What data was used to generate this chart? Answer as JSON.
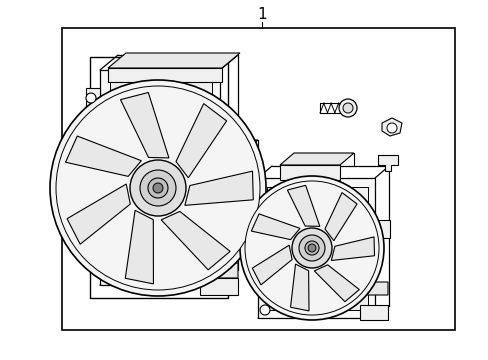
{
  "title": "1",
  "bg": "#ffffff",
  "lc": "#000000",
  "lw": 1.0,
  "fig_w": 4.89,
  "fig_h": 3.6,
  "dpi": 100
}
